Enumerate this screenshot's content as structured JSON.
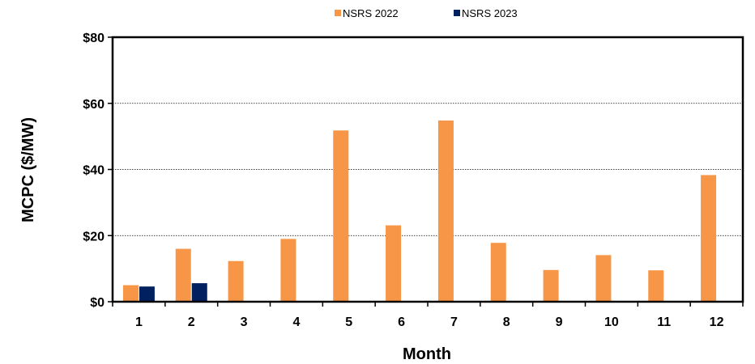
{
  "chart_data": {
    "type": "bar",
    "xlabel": "Month",
    "ylabel": "MCPC ($/MW)",
    "categories": [
      "1",
      "2",
      "3",
      "4",
      "5",
      "6",
      "7",
      "8",
      "9",
      "10",
      "11",
      "12"
    ],
    "series": [
      {
        "name": "NSRS 2022",
        "color": "#F79646",
        "values": [
          5.0,
          16.0,
          12.3,
          19.0,
          51.8,
          23.1,
          54.8,
          17.8,
          9.6,
          14.1,
          9.5,
          38.3
        ]
      },
      {
        "name": "NSRS 2023",
        "color": "#002060",
        "values": [
          4.6,
          5.6,
          null,
          null,
          null,
          null,
          null,
          null,
          null,
          null,
          null,
          null
        ]
      }
    ],
    "ylim": [
      0,
      80
    ],
    "yticks": [
      0,
      20,
      40,
      60,
      80
    ],
    "ytick_labels": [
      "$0",
      "$20",
      "$40",
      "$60",
      "$80"
    ],
    "grid": "horizontal-dotted",
    "legend": "top-center"
  }
}
